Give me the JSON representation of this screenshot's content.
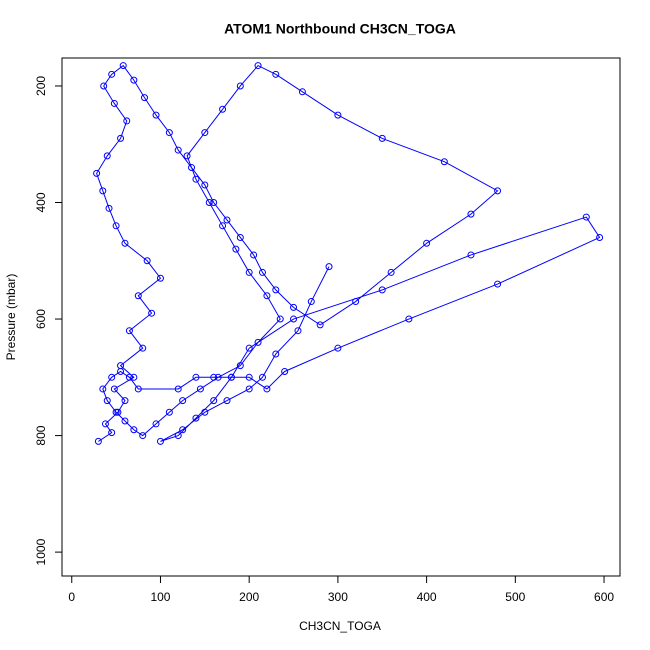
{
  "chart_data": {
    "type": "line",
    "title": "ATOM1 Northbound CH3CN_TOGA",
    "x_label": "CH3CN_TOGA",
    "y_label": "Pressure (mbar)",
    "color": "#0000ff",
    "points": true,
    "xlim": [
      -11,
      618
    ],
    "ylim": [
      1041,
      152
    ],
    "xticks": [
      0,
      100,
      200,
      300,
      400,
      500,
      600
    ],
    "yticks": [
      200,
      400,
      600,
      800,
      1000
    ],
    "x": [
      30,
      45,
      38,
      52,
      60,
      48,
      70,
      55,
      80,
      65,
      90,
      75,
      100,
      85,
      60,
      50,
      42,
      35,
      28,
      40,
      55,
      62,
      48,
      36,
      45,
      58,
      70,
      82,
      95,
      110,
      120,
      135,
      150,
      160,
      175,
      190,
      205,
      215,
      230,
      250,
      280,
      320,
      360,
      400,
      450,
      480,
      420,
      350,
      300,
      260,
      230,
      210,
      190,
      170,
      150,
      130,
      140,
      155,
      170,
      185,
      200,
      220,
      235,
      210,
      190,
      165,
      145,
      125,
      110,
      95,
      80,
      70,
      60,
      50,
      40,
      35,
      45,
      55,
      65,
      75,
      120,
      140,
      160,
      180,
      200,
      220,
      240,
      300,
      380,
      480,
      595,
      580,
      450,
      350,
      250,
      200,
      180,
      160,
      140,
      120,
      100,
      125,
      150,
      175,
      200,
      215,
      230,
      255,
      270,
      290
    ],
    "values": [
      810,
      795,
      780,
      760,
      740,
      720,
      700,
      680,
      650,
      620,
      590,
      560,
      530,
      500,
      470,
      440,
      410,
      380,
      350,
      320,
      290,
      260,
      230,
      200,
      180,
      165,
      190,
      220,
      250,
      280,
      310,
      340,
      370,
      400,
      430,
      460,
      490,
      520,
      550,
      580,
      610,
      570,
      520,
      470,
      420,
      380,
      330,
      290,
      250,
      210,
      180,
      165,
      200,
      240,
      280,
      320,
      360,
      400,
      440,
      480,
      520,
      560,
      600,
      640,
      680,
      700,
      720,
      740,
      760,
      780,
      800,
      790,
      775,
      760,
      740,
      720,
      700,
      690,
      700,
      720,
      720,
      700,
      700,
      700,
      700,
      720,
      690,
      650,
      600,
      540,
      460,
      425,
      490,
      550,
      600,
      650,
      700,
      740,
      770,
      800,
      810,
      790,
      760,
      740,
      720,
      700,
      660,
      620,
      570,
      510
    ]
  }
}
